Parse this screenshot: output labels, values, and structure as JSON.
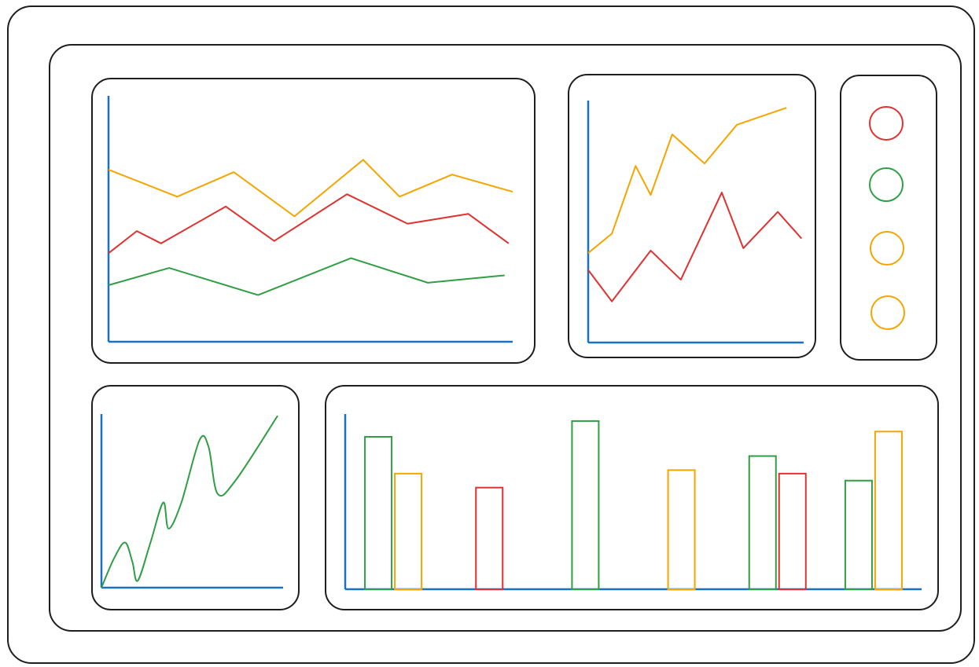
{
  "chart_data": [
    {
      "type": "line",
      "xlim": [
        0,
        100
      ],
      "ylim": [
        0,
        100
      ],
      "series": [
        {
          "color": "#f5a500",
          "x": [
            0,
            17,
            31,
            46,
            63,
            72,
            85,
            100
          ],
          "values": [
            70,
            59,
            69,
            51,
            74,
            59,
            68,
            61
          ]
        },
        {
          "color": "#e03131",
          "x": [
            0,
            7,
            13,
            29,
            41,
            59,
            74,
            89,
            99
          ],
          "values": [
            36,
            45,
            40,
            55,
            41,
            60,
            48,
            52,
            40
          ]
        },
        {
          "color": "#2f9e44",
          "x": [
            0,
            15,
            37,
            60,
            79,
            98
          ],
          "values": [
            23,
            30,
            19,
            34,
            24,
            27
          ]
        }
      ]
    },
    {
      "type": "line",
      "xlim": [
        0,
        100
      ],
      "ylim": [
        0,
        100
      ],
      "series": [
        {
          "color": "#f5a500",
          "x": [
            0,
            11,
            22,
            29,
            39,
            54,
            69,
            92
          ],
          "values": [
            37,
            45,
            73,
            61,
            86,
            74,
            90,
            97
          ]
        },
        {
          "color": "#e03131",
          "x": [
            0,
            11,
            29,
            43,
            62,
            72,
            88,
            99
          ],
          "values": [
            30,
            17,
            38,
            26,
            62,
            39,
            54,
            43
          ]
        }
      ]
    },
    {
      "type": "line",
      "smooth": true,
      "xlim": [
        0,
        100
      ],
      "ylim": [
        0,
        100
      ],
      "series": [
        {
          "color": "#2f9e44",
          "x": [
            0,
            7,
            13,
            17,
            20,
            27,
            34,
            37,
            44,
            54,
            59,
            64,
            74,
            97
          ],
          "values": [
            0,
            17,
            26,
            15,
            4,
            26,
            49,
            34,
            49,
            85,
            81,
            54,
            62,
            99
          ]
        }
      ]
    },
    {
      "type": "bar",
      "ylim": [
        0,
        100
      ],
      "categories": [
        null,
        null,
        null,
        null,
        null,
        null
      ],
      "series": [
        {
          "color": "#2f9e44",
          "values": [
            87,
            null,
            96,
            null,
            76,
            62
          ]
        },
        {
          "color": "#f5a500",
          "values": [
            66,
            null,
            null,
            68,
            null,
            90
          ]
        },
        {
          "color": "#e03131",
          "values": [
            null,
            58,
            null,
            null,
            66,
            null
          ]
        }
      ]
    }
  ]
}
